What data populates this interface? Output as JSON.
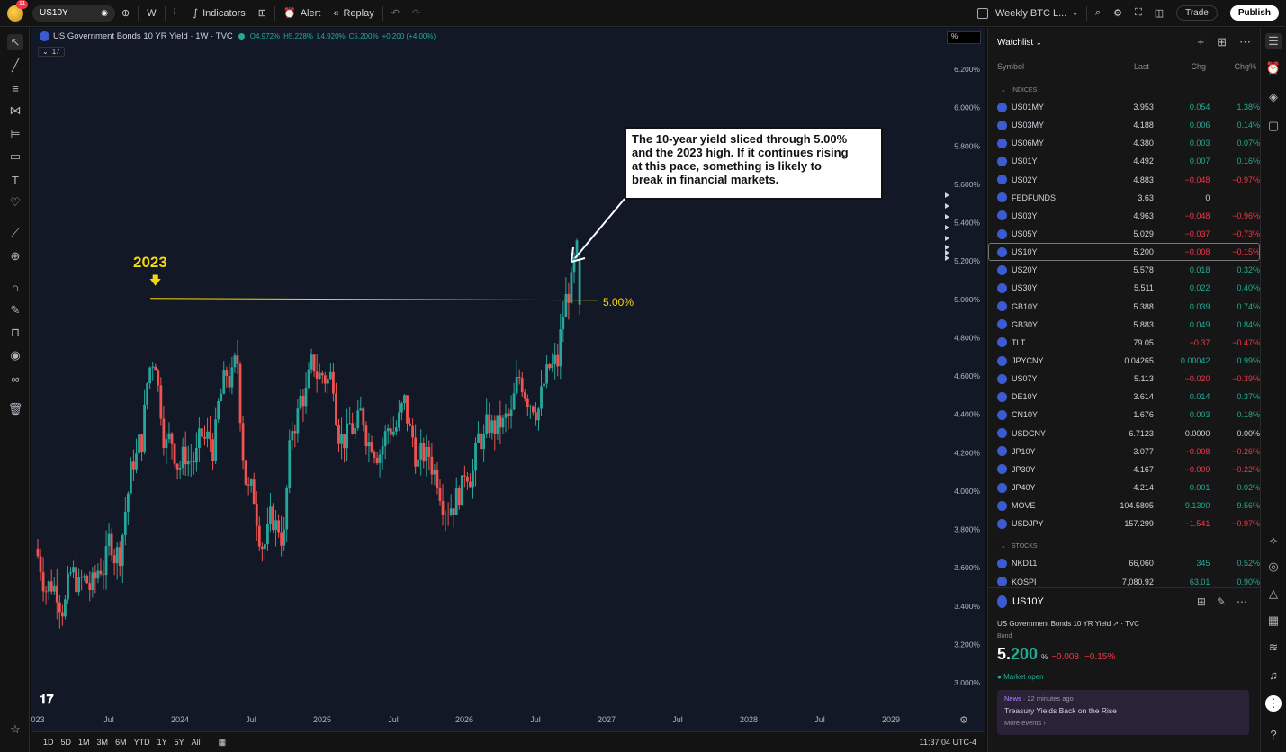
{
  "topbar": {
    "avatar_badge": "11",
    "symbol": "US10Y",
    "interval": "W",
    "indicators": "Indicators",
    "alert": "Alert",
    "replay": "Replay",
    "layout_name": "Weekly BTC L...",
    "trade": "Trade",
    "publish": "Publish"
  },
  "chart": {
    "title": "US Government Bonds 10 YR Yield · 1W · TVC",
    "ohlc": {
      "o": "O4.972%",
      "h": "H5.228%",
      "l": "L4.920%",
      "c": "C5.200%",
      "chg": "+0.200 (+4.00%)"
    },
    "indicator_count": "17",
    "scale_mode": "%",
    "annotation_2023": "2023",
    "level_label": "5.00%",
    "callout": [
      "The 10-year yield sliced through 5.00%",
      "and the 2023 high. If it continues rising",
      "at this pace, something is likely to",
      "break in financial markets."
    ],
    "y_ticks": [
      "6.200%",
      "6.000%",
      "5.800%",
      "5.600%",
      "5.400%",
      "5.200%",
      "5.000%",
      "4.800%",
      "4.600%",
      "4.400%",
      "4.200%",
      "4.000%",
      "3.800%",
      "3.600%",
      "3.400%",
      "3.200%",
      "3.000%"
    ],
    "x_ticks": [
      "023",
      "Jul",
      "2024",
      "Jul",
      "2025",
      "Jul",
      "2026",
      "Jul",
      "2027",
      "Jul",
      "2028",
      "Jul",
      "2029"
    ],
    "colors": {
      "up": "#26a69a",
      "down": "#ef5350",
      "level": "#f5d90a",
      "bg": "#121826"
    }
  },
  "chart_data": {
    "type": "candlestick",
    "title": "US Government Bonds 10 YR Yield · 1W · TVC",
    "ylim": [
      2.9,
      6.3
    ],
    "x_range": [
      "2023-01",
      "2029-06"
    ],
    "segments": [
      {
        "from": "2023-01",
        "to": "2023-03",
        "level": 3.55
      },
      {
        "from": "2023-04",
        "to": "2023-05",
        "level": 3.45
      },
      {
        "from": "2023-06",
        "to": "2023-07",
        "level": 3.75
      },
      {
        "from": "2023-08",
        "to": "2023-09",
        "level": 4.3
      },
      {
        "from": "2023-10",
        "to": "2023-10",
        "level": 4.9
      },
      {
        "from": "2023-11",
        "to": "2023-12",
        "level": 4.2
      },
      {
        "from": "2024-01",
        "to": "2024-03",
        "level": 4.2
      },
      {
        "from": "2024-04",
        "to": "2024-05",
        "level": 4.6
      },
      {
        "from": "2024-06",
        "to": "2024-09",
        "level": 3.8
      },
      {
        "from": "2024-10",
        "to": "2025-01",
        "level": 4.6
      },
      {
        "from": "2025-02",
        "to": "2025-04",
        "level": 4.3
      },
      {
        "from": "2025-05",
        "to": "2025-07",
        "level": 4.4
      },
      {
        "from": "2025-08",
        "to": "2025-12",
        "level": 4.1
      },
      {
        "from": "2026-01",
        "to": "2026-04",
        "level": 4.3
      },
      {
        "from": "2026-05",
        "to": "2026-08",
        "level": 4.6
      },
      {
        "from": "2026-09",
        "to": "2026-10",
        "level": 5.2
      }
    ],
    "last_candle": {
      "open": 4.972,
      "high": 5.228,
      "low": 4.92,
      "close": 5.2
    },
    "horizontal_level": 5.0,
    "annotations": [
      "2023",
      "5.00%"
    ]
  },
  "bottombar": {
    "ranges": [
      "1D",
      "5D",
      "1M",
      "3M",
      "6M",
      "YTD",
      "1Y",
      "5Y",
      "All"
    ],
    "time": "11:37:04 UTC-4"
  },
  "watchlist": {
    "title": "Watchlist",
    "columns": [
      "Symbol",
      "Last",
      "Chg",
      "Chg%"
    ],
    "section_indices": "INDICES",
    "section_stocks": "STOCKS",
    "indices": [
      {
        "sym": "US01MY",
        "last": "3.953",
        "chg": "0.054",
        "pct": "1.38%",
        "dir": "pos"
      },
      {
        "sym": "US03MY",
        "last": "4.188",
        "chg": "0.006",
        "pct": "0.14%",
        "dir": "pos"
      },
      {
        "sym": "US06MY",
        "last": "4.380",
        "chg": "0.003",
        "pct": "0.07%",
        "dir": "pos"
      },
      {
        "sym": "US01Y",
        "last": "4.492",
        "chg": "0.007",
        "pct": "0.16%",
        "dir": "pos"
      },
      {
        "sym": "US02Y",
        "last": "4.883",
        "chg": "−0.048",
        "pct": "−0.97%",
        "dir": "neg"
      },
      {
        "sym": "FEDFUNDS",
        "last": "3.63",
        "chg": "0",
        "pct": "",
        "dir": "neu"
      },
      {
        "sym": "US03Y",
        "last": "4.963",
        "chg": "−0.048",
        "pct": "−0.96%",
        "dir": "neg"
      },
      {
        "sym": "US05Y",
        "last": "5.029",
        "chg": "−0.037",
        "pct": "−0.73%",
        "dir": "neg"
      },
      {
        "sym": "US10Y",
        "last": "5.200",
        "chg": "−0.008",
        "pct": "−0.15%",
        "dir": "neg"
      },
      {
        "sym": "US20Y",
        "last": "5.578",
        "chg": "0.018",
        "pct": "0.32%",
        "dir": "pos"
      },
      {
        "sym": "US30Y",
        "last": "5.511",
        "chg": "0.022",
        "pct": "0.40%",
        "dir": "pos"
      },
      {
        "sym": "GB10Y",
        "last": "5.388",
        "chg": "0.039",
        "pct": "0.74%",
        "dir": "pos"
      },
      {
        "sym": "GB30Y",
        "last": "5.883",
        "chg": "0.049",
        "pct": "0.84%",
        "dir": "pos"
      },
      {
        "sym": "TLT",
        "last": "79.05",
        "chg": "−0.37",
        "pct": "−0.47%",
        "dir": "neg"
      },
      {
        "sym": "JPYCNY",
        "last": "0.04265",
        "chg": "0.00042",
        "pct": "0.99%",
        "dir": "pos"
      },
      {
        "sym": "US07Y",
        "last": "5.113",
        "chg": "−0.020",
        "pct": "−0.39%",
        "dir": "neg"
      },
      {
        "sym": "DE10Y",
        "last": "3.614",
        "chg": "0.014",
        "pct": "0.37%",
        "dir": "pos"
      },
      {
        "sym": "CN10Y",
        "last": "1.676",
        "chg": "0.003",
        "pct": "0.18%",
        "dir": "pos"
      },
      {
        "sym": "USDCNY",
        "last": "6.7123",
        "chg": "0.0000",
        "pct": "0.00%",
        "dir": "neu"
      },
      {
        "sym": "JP10Y",
        "last": "3.077",
        "chg": "−0.008",
        "pct": "−0.26%",
        "dir": "neg"
      },
      {
        "sym": "JP30Y",
        "last": "4.167",
        "chg": "−0.009",
        "pct": "−0.22%",
        "dir": "neg"
      },
      {
        "sym": "JP40Y",
        "last": "4.214",
        "chg": "0.001",
        "pct": "0.02%",
        "dir": "pos"
      },
      {
        "sym": "MOVE",
        "last": "104.5805",
        "chg": "9.1300",
        "pct": "9.56%",
        "dir": "pos"
      },
      {
        "sym": "USDJPY",
        "last": "157.299",
        "chg": "−1.541",
        "pct": "−0.97%",
        "dir": "neg"
      }
    ],
    "stocks": [
      {
        "sym": "NKD11",
        "last": "66,060",
        "chg": "345",
        "pct": "0.52%",
        "dir": "pos"
      },
      {
        "sym": "KOSPI",
        "last": "7,080.92",
        "chg": "63.01",
        "pct": "0.90%",
        "dir": "pos"
      }
    ]
  },
  "detail": {
    "symbol": "US10Y",
    "name": "US Government Bonds 10 YR Yield",
    "source": "TVC",
    "type": "Bond",
    "price_int": "5.",
    "price_dec": "200",
    "unit": "%",
    "chg": "−0.008",
    "pct": "−0.15%",
    "status": "Market open",
    "news_tag": "News",
    "news_time": "· 22 minutes ago",
    "news_headline": "Treasury Yields Back on the Rise",
    "news_more": "More events ›"
  }
}
